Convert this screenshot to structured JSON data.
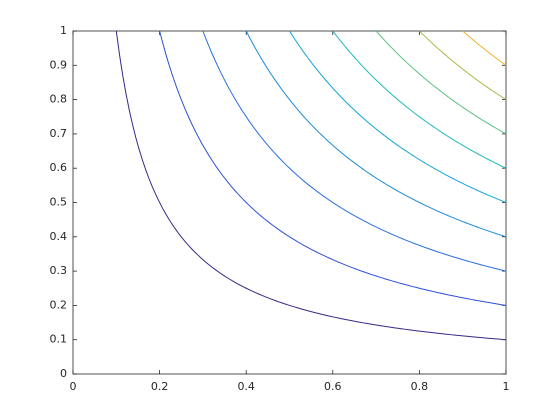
{
  "chart_data": {
    "type": "contour",
    "levels": [
      0.1,
      0.2,
      0.3,
      0.4,
      0.5,
      0.6,
      0.7,
      0.8,
      0.9
    ],
    "colors": [
      "#352a87",
      "#2d50d8",
      "#2a6fe0",
      "#1b8bd9",
      "#10a6d2",
      "#1fb9b8",
      "#5bbf84",
      "#a8bd4a",
      "#f0b32a"
    ],
    "xlim": [
      0,
      1
    ],
    "ylim": [
      0,
      1
    ],
    "xticks": [
      0,
      0.2,
      0.4,
      0.6,
      0.8,
      1
    ],
    "yticks": [
      0,
      0.1,
      0.2,
      0.3,
      0.4,
      0.5,
      0.6,
      0.7,
      0.8,
      0.9,
      1
    ],
    "grid": false
  }
}
